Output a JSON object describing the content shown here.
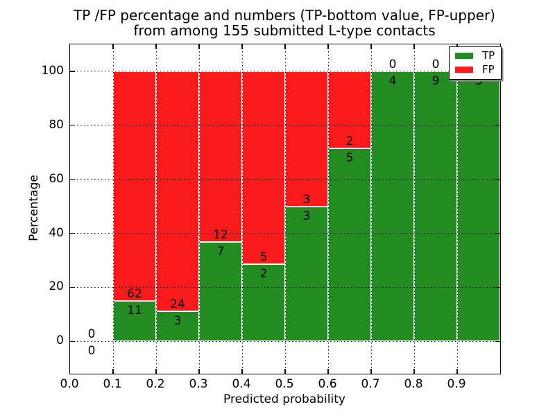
{
  "title": {
    "line1": "TP /FP percentage and numbers (TP-bottom value, FP-upper)",
    "line2": "from among 155 submitted L-type contacts"
  },
  "axes": {
    "xlabel": "Predicted probability",
    "ylabel": "Percentage",
    "x_ticks": [
      "0.0",
      "0.1",
      "0.2",
      "0.3",
      "0.4",
      "0.5",
      "0.6",
      "0.7",
      "0.8",
      "0.9"
    ],
    "y_ticks": [
      "0",
      "20",
      "40",
      "60",
      "80",
      "100"
    ]
  },
  "legend": {
    "items": [
      {
        "label": "TP",
        "color": "#228B22"
      },
      {
        "label": "FP",
        "color": "#FB1A1B"
      }
    ]
  },
  "colors": {
    "tp": "#228B22",
    "fp": "#FB1A1B",
    "bar_edge": "#FFFFFF",
    "grid": "#000000",
    "spine": "#000000",
    "text": "#000000",
    "background": "#FFFFFF",
    "legend_shadow": "#888888"
  },
  "chart_data": {
    "type": "bar",
    "stacked": true,
    "title": "TP /FP percentage and numbers (TP-bottom value, FP-upper) from among 155 submitted L-type contacts",
    "xlabel": "Predicted probability",
    "ylabel": "Percentage",
    "xlim": [
      0.0,
      1.0
    ],
    "ylim": [
      -12,
      110
    ],
    "grid": "dotted",
    "legend_position": "upper right",
    "total_submitted": 155,
    "series": [
      {
        "name": "TP",
        "color": "#228B22"
      },
      {
        "name": "FP",
        "color": "#FB1A1B"
      }
    ],
    "bins": [
      {
        "x_range": [
          0.0,
          0.1
        ],
        "tp": 0,
        "fp": 0,
        "tp_pct": 0.0,
        "fp_pct": 0.0
      },
      {
        "x_range": [
          0.1,
          0.2
        ],
        "tp": 11,
        "fp": 62,
        "tp_pct": 15.1,
        "fp_pct": 84.9
      },
      {
        "x_range": [
          0.2,
          0.3
        ],
        "tp": 3,
        "fp": 24,
        "tp_pct": 11.1,
        "fp_pct": 88.9
      },
      {
        "x_range": [
          0.3,
          0.4
        ],
        "tp": 7,
        "fp": 12,
        "tp_pct": 36.8,
        "fp_pct": 63.2
      },
      {
        "x_range": [
          0.4,
          0.5
        ],
        "tp": 2,
        "fp": 5,
        "tp_pct": 28.6,
        "fp_pct": 71.4
      },
      {
        "x_range": [
          0.5,
          0.6
        ],
        "tp": 3,
        "fp": 3,
        "tp_pct": 50.0,
        "fp_pct": 50.0
      },
      {
        "x_range": [
          0.6,
          0.7
        ],
        "tp": 5,
        "fp": 2,
        "tp_pct": 71.4,
        "fp_pct": 28.6
      },
      {
        "x_range": [
          0.7,
          0.8
        ],
        "tp": 4,
        "fp": 0,
        "tp_pct": 100.0,
        "fp_pct": 0.0
      },
      {
        "x_range": [
          0.8,
          0.9
        ],
        "tp": 9,
        "fp": 0,
        "tp_pct": 100.0,
        "fp_pct": 0.0
      },
      {
        "x_range": [
          0.9,
          1.0
        ],
        "tp": 3,
        "fp": 0,
        "tp_pct": 100.0,
        "fp_pct": 0.0
      }
    ]
  }
}
